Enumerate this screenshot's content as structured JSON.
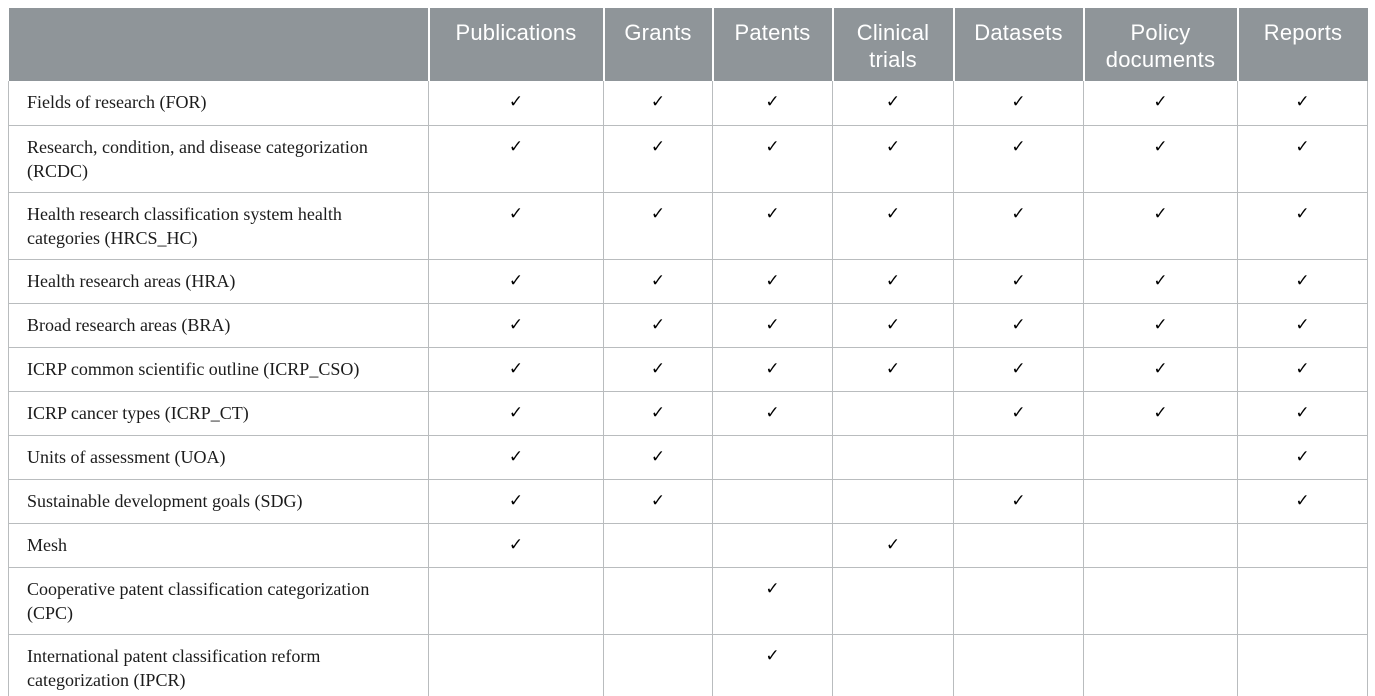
{
  "table": {
    "check_glyph": "✓",
    "columns": [
      "",
      "Publications",
      "Grants",
      "Patents",
      "Clinical trials",
      "Datasets",
      "Policy documents",
      "Reports"
    ],
    "rows": [
      {
        "label": "Fields of research (FOR)",
        "checks": [
          true,
          true,
          true,
          true,
          true,
          true,
          true
        ]
      },
      {
        "label": "Research, condition, and disease categorization (RCDC)",
        "checks": [
          true,
          true,
          true,
          true,
          true,
          true,
          true
        ]
      },
      {
        "label": "Health research classification system health categories (HRCS_HC)",
        "checks": [
          true,
          true,
          true,
          true,
          true,
          true,
          true
        ]
      },
      {
        "label": "Health research areas (HRA)",
        "checks": [
          true,
          true,
          true,
          true,
          true,
          true,
          true
        ]
      },
      {
        "label": "Broad research areas (BRA)",
        "checks": [
          true,
          true,
          true,
          true,
          true,
          true,
          true
        ]
      },
      {
        "label": "ICRP common scientific outline (ICRP_CSO)",
        "checks": [
          true,
          true,
          true,
          true,
          true,
          true,
          true
        ]
      },
      {
        "label": "ICRP cancer types (ICRP_CT)",
        "checks": [
          true,
          true,
          true,
          false,
          true,
          true,
          true
        ]
      },
      {
        "label": "Units of assessment (UOA)",
        "checks": [
          true,
          true,
          false,
          false,
          false,
          false,
          true
        ]
      },
      {
        "label": "Sustainable development goals (SDG)",
        "checks": [
          true,
          true,
          false,
          false,
          true,
          false,
          true
        ]
      },
      {
        "label": "Mesh",
        "checks": [
          true,
          false,
          false,
          true,
          false,
          false,
          false
        ]
      },
      {
        "label": "Cooperative patent classification categorization (CPC)",
        "checks": [
          false,
          false,
          true,
          false,
          false,
          false,
          false
        ]
      },
      {
        "label": "International patent classification reform categorization (IPCR)",
        "checks": [
          false,
          false,
          true,
          false,
          false,
          false,
          false
        ]
      }
    ],
    "colors": {
      "header_bg": "#8f9599",
      "header_text": "#ffffff",
      "body_text": "#1b1b1b",
      "grid_border": "#b9bcbe",
      "bottom_border": "#9aa0a3",
      "check": "#000000"
    }
  }
}
